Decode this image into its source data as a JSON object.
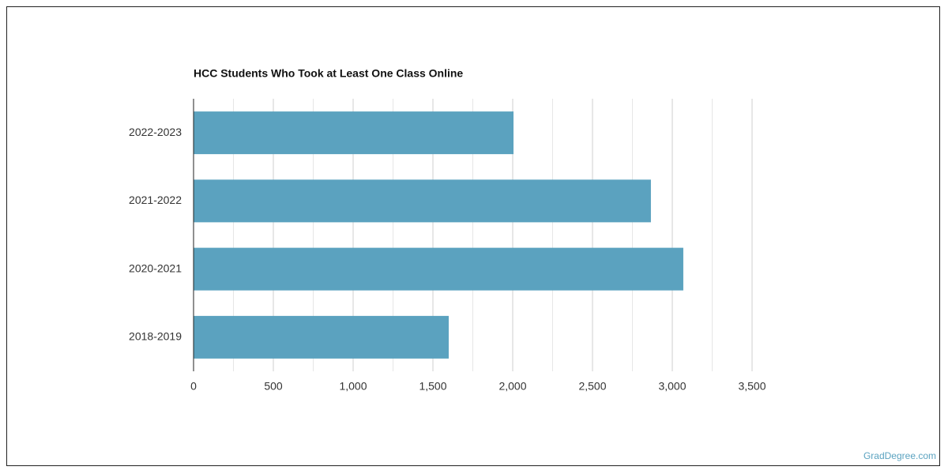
{
  "chart_data": {
    "type": "hbar",
    "title": "HCC Students Who Took at Least One Class Online",
    "categories": [
      "2022-2023",
      "2021-2022",
      "2020-2021",
      "2018-2019"
    ],
    "values": [
      2005,
      2866,
      3069,
      1599
    ],
    "color": "#5ba2bf",
    "xlim": [
      0,
      3500
    ],
    "xticks": [
      0,
      500,
      {
        "value": 1000,
        "label": "1,000"
      },
      {
        "value": 1500,
        "label": "1,500"
      },
      {
        "value": 2000,
        "label": "2,000"
      },
      {
        "value": 2500,
        "label": "2,500"
      },
      {
        "value": 3000,
        "label": "3,000"
      },
      {
        "value": 3500,
        "label": "3,500"
      }
    ],
    "minor_xticks": [
      250,
      750,
      1250,
      1750,
      2250,
      2750,
      3250
    ],
    "grid": true,
    "source": "GradDegree.com"
  }
}
